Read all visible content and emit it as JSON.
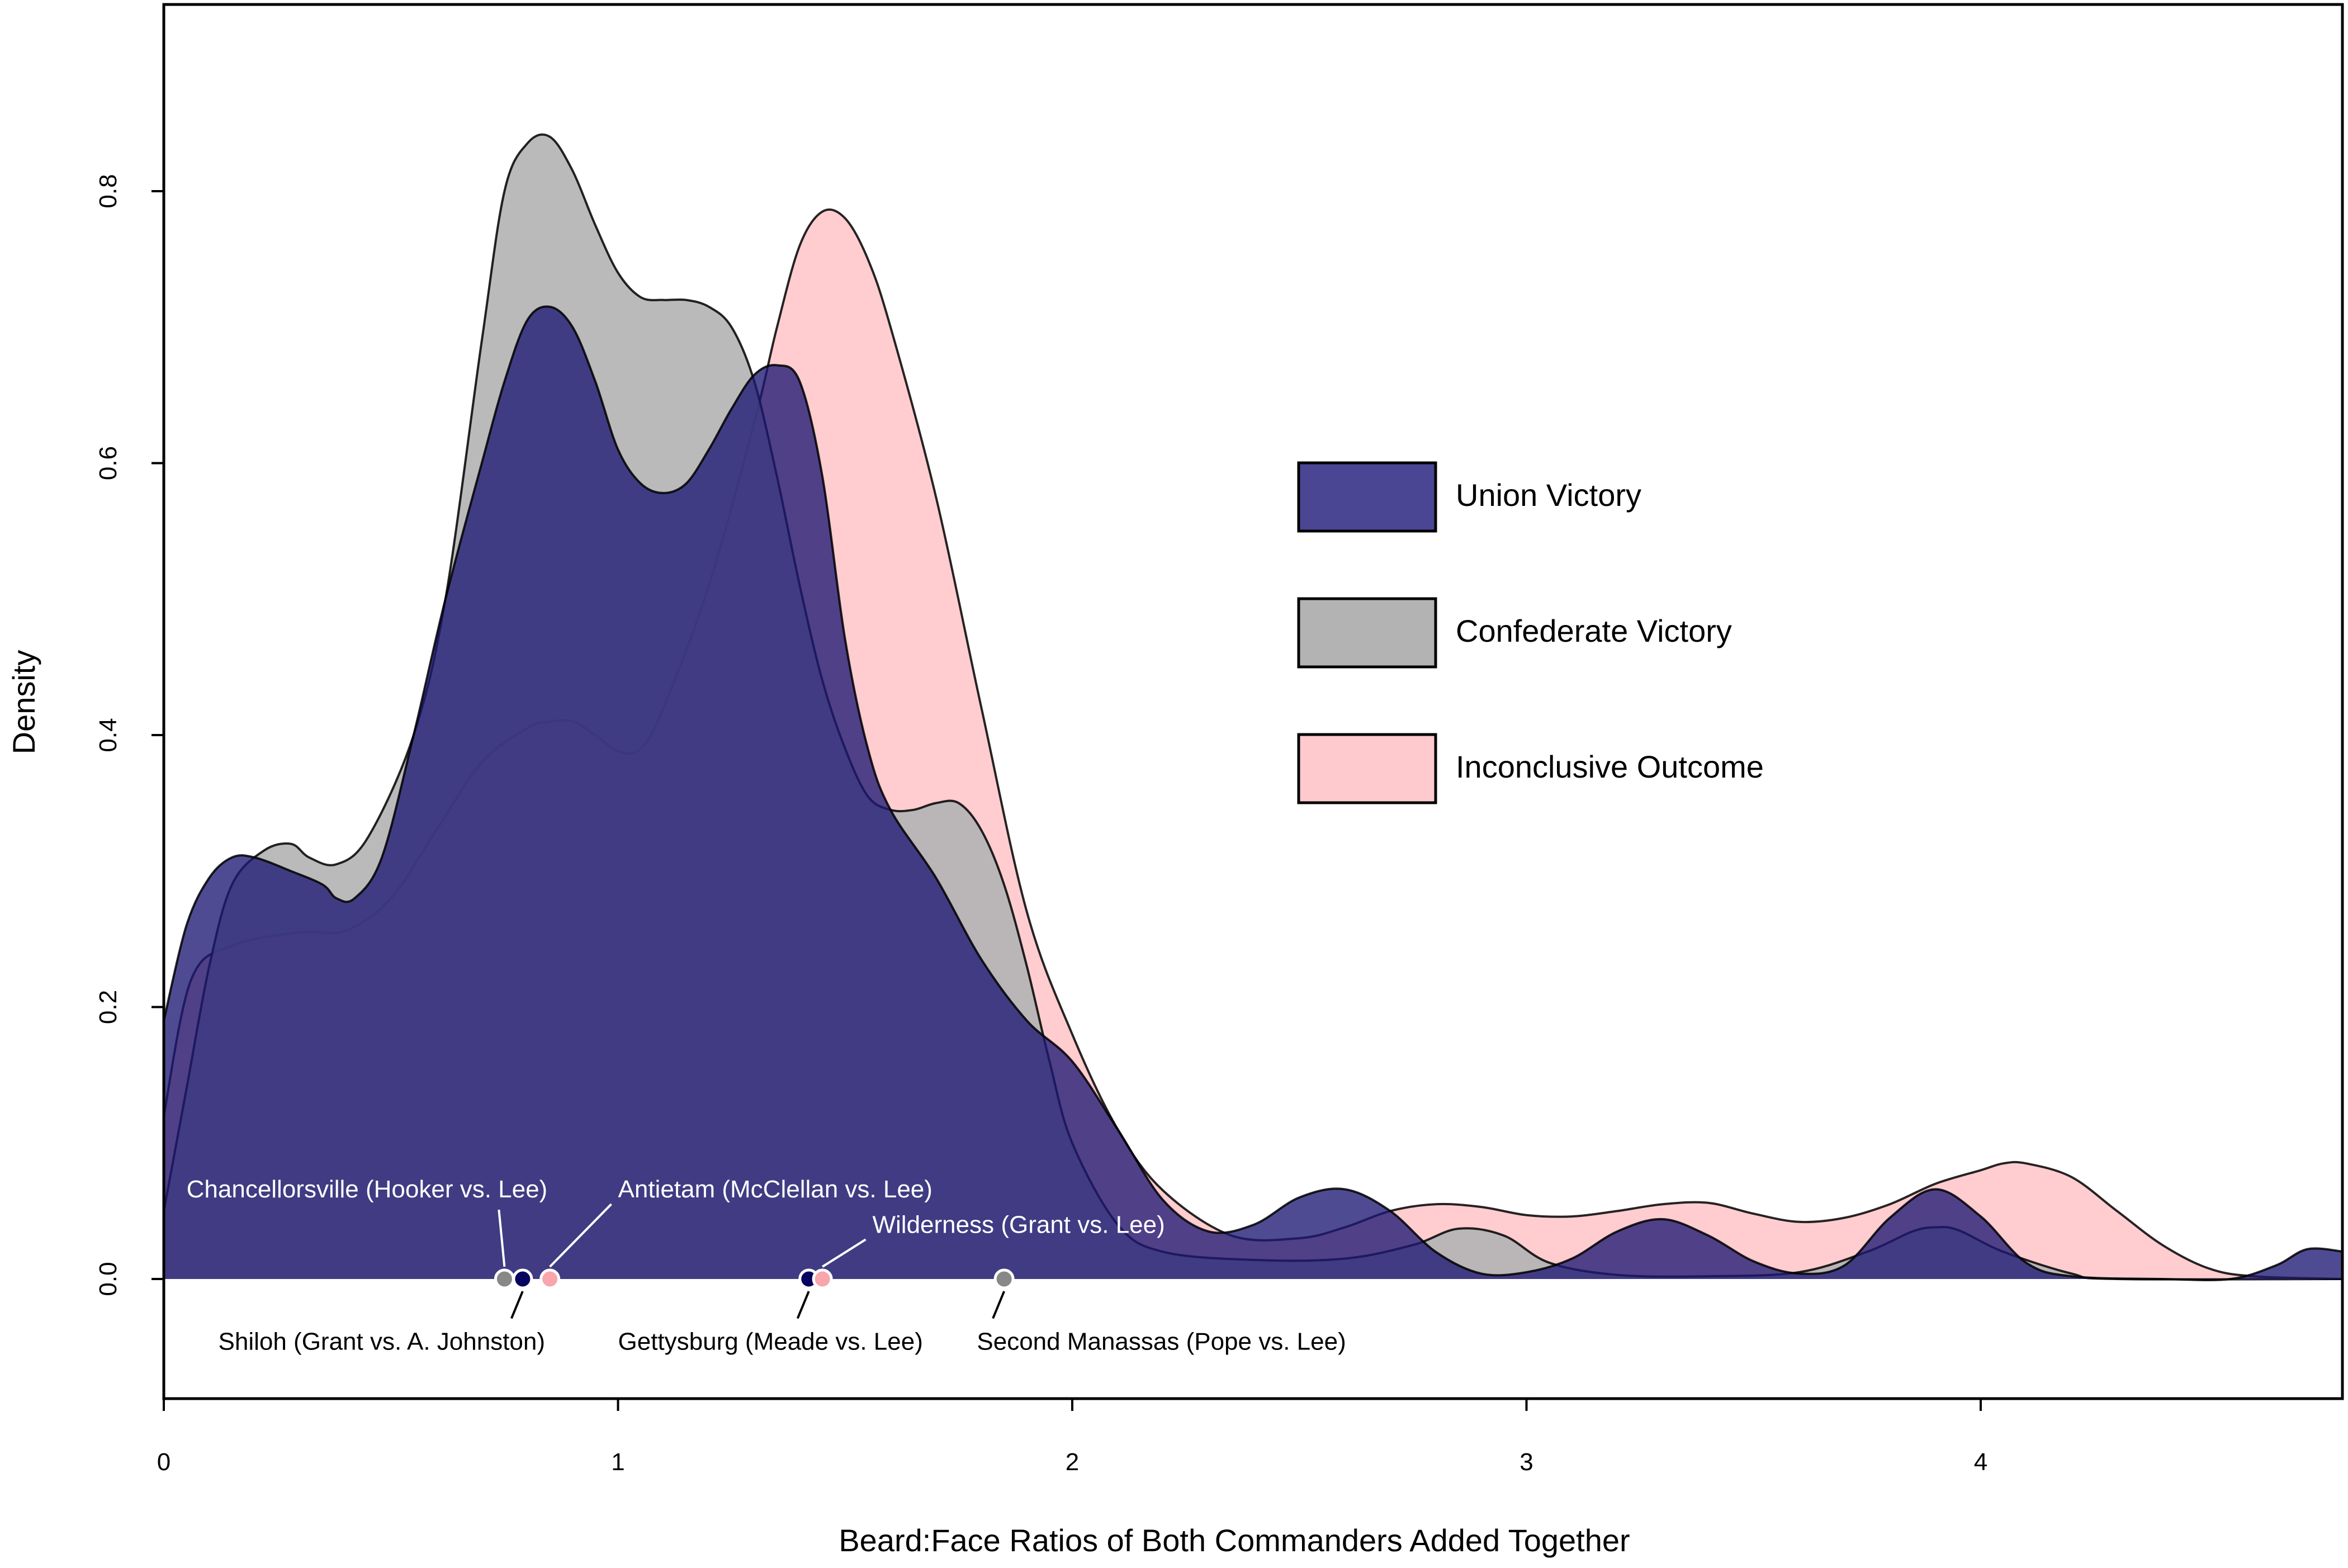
{
  "chart_data": {
    "type": "area",
    "subtype": "overlapping kernel density curves with labeled point markers",
    "title": "",
    "xlabel": "Beard:Face Ratios of Both Commanders Added Together",
    "ylabel": "Density",
    "xlim": [
      0,
      4.8
    ],
    "ylim": [
      -0.088,
      0.935
    ],
    "x_ticks": [
      0,
      1,
      2,
      3,
      4
    ],
    "x_tick_labels": [
      "0",
      "1",
      "2",
      "3",
      "4"
    ],
    "y_ticks": [
      0,
      0.2,
      0.4,
      0.6,
      0.8
    ],
    "y_tick_labels": [
      "0.0",
      "0.2",
      "0.4",
      "0.6",
      "0.8"
    ],
    "grid": false,
    "legend_position": "right",
    "series": [
      {
        "name": "Inconclusive Outcome",
        "color": "#FFC0C4",
        "fill_opacity": 0.8,
        "points": [
          [
            0,
            0.12
          ],
          [
            0.06,
            0.22
          ],
          [
            0.15,
            0.245
          ],
          [
            0.3,
            0.255
          ],
          [
            0.4,
            0.256
          ],
          [
            0.5,
            0.28
          ],
          [
            0.6,
            0.33
          ],
          [
            0.7,
            0.38
          ],
          [
            0.8,
            0.405
          ],
          [
            0.85,
            0.41
          ],
          [
            0.9,
            0.41
          ],
          [
            0.95,
            0.4
          ],
          [
            1.0,
            0.388
          ],
          [
            1.05,
            0.39
          ],
          [
            1.1,
            0.42
          ],
          [
            1.2,
            0.51
          ],
          [
            1.3,
            0.63
          ],
          [
            1.35,
            0.7
          ],
          [
            1.4,
            0.76
          ],
          [
            1.45,
            0.785
          ],
          [
            1.5,
            0.78
          ],
          [
            1.55,
            0.75
          ],
          [
            1.6,
            0.7
          ],
          [
            1.7,
            0.575
          ],
          [
            1.8,
            0.42
          ],
          [
            1.9,
            0.27
          ],
          [
            2.0,
            0.18
          ],
          [
            2.1,
            0.11
          ],
          [
            2.2,
            0.065
          ],
          [
            2.35,
            0.032
          ],
          [
            2.5,
            0.03
          ],
          [
            2.6,
            0.038
          ],
          [
            2.7,
            0.05
          ],
          [
            2.8,
            0.055
          ],
          [
            2.9,
            0.053
          ],
          [
            3.0,
            0.047
          ],
          [
            3.1,
            0.046
          ],
          [
            3.2,
            0.05
          ],
          [
            3.3,
            0.055
          ],
          [
            3.4,
            0.056
          ],
          [
            3.5,
            0.048
          ],
          [
            3.6,
            0.042
          ],
          [
            3.7,
            0.045
          ],
          [
            3.8,
            0.055
          ],
          [
            3.9,
            0.07
          ],
          [
            4.0,
            0.08
          ],
          [
            4.05,
            0.085
          ],
          [
            4.1,
            0.085
          ],
          [
            4.2,
            0.075
          ],
          [
            4.3,
            0.05
          ],
          [
            4.4,
            0.025
          ],
          [
            4.5,
            0.008
          ],
          [
            4.6,
            0.002
          ],
          [
            4.8,
            0.0
          ]
        ]
      },
      {
        "name": "Confederate Victory",
        "color": "#B3B3B3",
        "fill_opacity": 0.9,
        "points": [
          [
            0,
            0.05
          ],
          [
            0.05,
            0.14
          ],
          [
            0.1,
            0.23
          ],
          [
            0.15,
            0.29
          ],
          [
            0.22,
            0.315
          ],
          [
            0.28,
            0.32
          ],
          [
            0.32,
            0.31
          ],
          [
            0.38,
            0.305
          ],
          [
            0.45,
            0.325
          ],
          [
            0.55,
            0.4
          ],
          [
            0.62,
            0.5
          ],
          [
            0.7,
            0.69
          ],
          [
            0.75,
            0.8
          ],
          [
            0.8,
            0.835
          ],
          [
            0.85,
            0.84
          ],
          [
            0.9,
            0.815
          ],
          [
            0.95,
            0.775
          ],
          [
            1.0,
            0.74
          ],
          [
            1.05,
            0.722
          ],
          [
            1.1,
            0.72
          ],
          [
            1.15,
            0.72
          ],
          [
            1.2,
            0.715
          ],
          [
            1.25,
            0.7
          ],
          [
            1.3,
            0.66
          ],
          [
            1.35,
            0.59
          ],
          [
            1.4,
            0.51
          ],
          [
            1.45,
            0.44
          ],
          [
            1.5,
            0.39
          ],
          [
            1.55,
            0.355
          ],
          [
            1.6,
            0.345
          ],
          [
            1.65,
            0.345
          ],
          [
            1.7,
            0.35
          ],
          [
            1.75,
            0.35
          ],
          [
            1.8,
            0.33
          ],
          [
            1.85,
            0.29
          ],
          [
            1.9,
            0.23
          ],
          [
            1.95,
            0.16
          ],
          [
            2.0,
            0.1
          ],
          [
            2.1,
            0.04
          ],
          [
            2.2,
            0.02
          ],
          [
            2.4,
            0.014
          ],
          [
            2.6,
            0.015
          ],
          [
            2.75,
            0.025
          ],
          [
            2.85,
            0.037
          ],
          [
            2.95,
            0.032
          ],
          [
            3.05,
            0.012
          ],
          [
            3.2,
            0.003
          ],
          [
            3.4,
            0.002
          ],
          [
            3.6,
            0.005
          ],
          [
            3.75,
            0.02
          ],
          [
            3.85,
            0.035
          ],
          [
            3.9,
            0.038
          ],
          [
            3.95,
            0.036
          ],
          [
            4.05,
            0.02
          ],
          [
            4.2,
            0.004
          ],
          [
            4.3,
            0.0
          ],
          [
            4.8,
            0.0
          ]
        ]
      },
      {
        "name": "Union Victory",
        "color": "#1D1873",
        "fill_opacity": 0.78,
        "points": [
          [
            0,
            0.19
          ],
          [
            0.05,
            0.26
          ],
          [
            0.1,
            0.295
          ],
          [
            0.15,
            0.31
          ],
          [
            0.2,
            0.31
          ],
          [
            0.28,
            0.3
          ],
          [
            0.35,
            0.29
          ],
          [
            0.38,
            0.28
          ],
          [
            0.42,
            0.28
          ],
          [
            0.48,
            0.31
          ],
          [
            0.55,
            0.4
          ],
          [
            0.62,
            0.5
          ],
          [
            0.7,
            0.6
          ],
          [
            0.75,
            0.66
          ],
          [
            0.8,
            0.705
          ],
          [
            0.85,
            0.715
          ],
          [
            0.9,
            0.7
          ],
          [
            0.95,
            0.66
          ],
          [
            1.0,
            0.61
          ],
          [
            1.05,
            0.585
          ],
          [
            1.1,
            0.578
          ],
          [
            1.15,
            0.585
          ],
          [
            1.2,
            0.61
          ],
          [
            1.25,
            0.64
          ],
          [
            1.3,
            0.665
          ],
          [
            1.35,
            0.672
          ],
          [
            1.4,
            0.66
          ],
          [
            1.45,
            0.59
          ],
          [
            1.5,
            0.47
          ],
          [
            1.55,
            0.39
          ],
          [
            1.6,
            0.345
          ],
          [
            1.7,
            0.295
          ],
          [
            1.8,
            0.235
          ],
          [
            1.9,
            0.19
          ],
          [
            2.0,
            0.16
          ],
          [
            2.1,
            0.11
          ],
          [
            2.2,
            0.058
          ],
          [
            2.3,
            0.035
          ],
          [
            2.4,
            0.04
          ],
          [
            2.5,
            0.06
          ],
          [
            2.6,
            0.066
          ],
          [
            2.7,
            0.05
          ],
          [
            2.8,
            0.02
          ],
          [
            2.9,
            0.004
          ],
          [
            3.0,
            0.005
          ],
          [
            3.1,
            0.015
          ],
          [
            3.2,
            0.035
          ],
          [
            3.3,
            0.044
          ],
          [
            3.4,
            0.032
          ],
          [
            3.5,
            0.013
          ],
          [
            3.6,
            0.004
          ],
          [
            3.7,
            0.01
          ],
          [
            3.8,
            0.045
          ],
          [
            3.9,
            0.066
          ],
          [
            4.0,
            0.046
          ],
          [
            4.1,
            0.012
          ],
          [
            4.2,
            0.002
          ],
          [
            4.4,
            0.0
          ],
          [
            4.55,
            0.0
          ],
          [
            4.65,
            0.01
          ],
          [
            4.72,
            0.022
          ],
          [
            4.8,
            0.02
          ]
        ]
      }
    ],
    "markers": [
      {
        "x": 0.75,
        "y": 0.0,
        "color": "#888888",
        "label": "Chancellorsville (Hooker vs. Lee)",
        "label_x": 0.05,
        "label_y": 0.06,
        "label_anchor": "start"
      },
      {
        "x": 0.79,
        "y": 0.0,
        "color": "#06045E",
        "label": "Shiloh (Grant vs. A. Johnston)",
        "label_x": 0.12,
        "label_y": -0.052,
        "label_anchor": "start"
      },
      {
        "x": 0.85,
        "y": 0.0,
        "color": "#F8A5AC",
        "label": "Antietam (McClellan vs. Lee)",
        "label_x": 1.0,
        "label_y": 0.06,
        "label_anchor": "start"
      },
      {
        "x": 1.42,
        "y": 0.0,
        "color": "#06045E",
        "label": "Gettysburg (Meade vs. Lee)",
        "label_x": 1.0,
        "label_y": -0.052,
        "label_anchor": "start"
      },
      {
        "x": 1.45,
        "y": 0.0,
        "color": "#F8A5AC",
        "label": "Wilderness (Grant vs. Lee)",
        "label_x": 1.56,
        "label_y": 0.034,
        "label_anchor": "start"
      },
      {
        "x": 1.85,
        "y": 0.0,
        "color": "#888888",
        "label": "Second Manassas (Pope vs. Lee)",
        "label_x": 1.79,
        "label_y": -0.052,
        "label_anchor": "start"
      }
    ],
    "legend": [
      {
        "label": "Union Victory",
        "color": "#4A4694"
      },
      {
        "label": "Confederate Victory",
        "color": "#B3B3B3"
      },
      {
        "label": "Inconclusive Outcome",
        "color": "#FFCACE"
      }
    ]
  }
}
